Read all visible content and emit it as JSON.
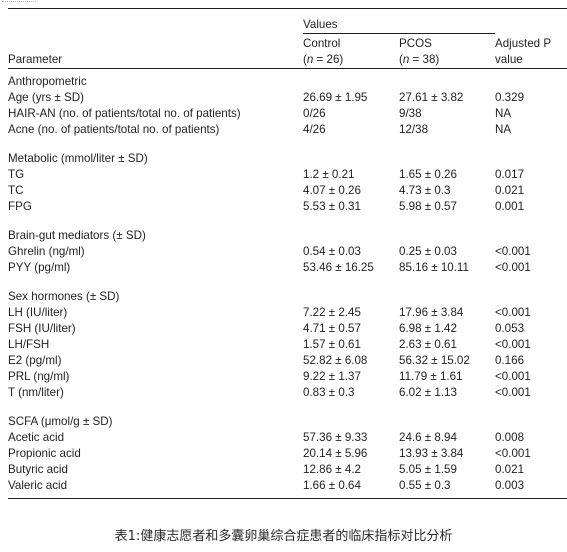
{
  "header": {
    "values_label": "Values",
    "parameter_label": "Parameter",
    "control_line1": "Control",
    "control_line2": "(n = 26)",
    "pcos_line1": "PCOS",
    "pcos_line2": "(n = 38)",
    "pvalue_line1": "Adjusted P",
    "pvalue_line2": "value"
  },
  "sections": [
    {
      "title": "Anthropometric",
      "rows": [
        {
          "label": "Age (yrs ± SD)",
          "control": "26.69 ± 1.95",
          "pcos": "27.61 ± 3.82",
          "p": "0.329"
        },
        {
          "label": "HAIR-AN (no. of patients/total no. of patients)",
          "control": "0/26",
          "pcos": "9/38",
          "p": "NA"
        },
        {
          "label": "Acne (no. of patients/total no. of patients)",
          "control": "4/26",
          "pcos": "12/38",
          "p": "NA"
        }
      ]
    },
    {
      "title": "Metabolic (mmol/liter ± SD)",
      "rows": [
        {
          "label": "TG",
          "control": "1.2 ± 0.21",
          "pcos": "1.65 ± 0.26",
          "p": "0.017"
        },
        {
          "label": "TC",
          "control": "4.07 ± 0.26",
          "pcos": "4.73 ± 0.3",
          "p": "0.021"
        },
        {
          "label": "FPG",
          "control": "5.53 ± 0.31",
          "pcos": "5.98 ± 0.57",
          "p": "0.001"
        }
      ]
    },
    {
      "title": "Brain-gut mediators (± SD)",
      "rows": [
        {
          "label": "Ghrelin (ng/ml)",
          "control": "0.54 ± 0.03",
          "pcos": "0.25 ± 0.03",
          "p": "<0.001"
        },
        {
          "label": "PYY (pg/ml)",
          "control": "53.46 ± 16.25",
          "pcos": "85.16 ± 10.11",
          "p": "<0.001"
        }
      ]
    },
    {
      "title": "Sex hormones (± SD)",
      "rows": [
        {
          "label": "LH (IU/liter)",
          "control": "7.22 ± 2.45",
          "pcos": "17.96 ± 3.84",
          "p": "<0.001"
        },
        {
          "label": "FSH (IU/liter)",
          "control": "4.71 ± 0.57",
          "pcos": "6.98 ± 1.42",
          "p": "0.053"
        },
        {
          "label": "LH/FSH",
          "control": "1.57 ± 0.61",
          "pcos": "2.63 ± 0.61",
          "p": "<0.001"
        },
        {
          "label": "E2 (pg/ml)",
          "control": "52.82 ± 6.08",
          "pcos": "56.32 ± 15.02",
          "p": "0.166"
        },
        {
          "label": "PRL (ng/ml)",
          "control": "9.22 ± 1.37",
          "pcos": "11.79 ± 1.61",
          "p": "<0.001"
        },
        {
          "label": "T (nm/liter)",
          "control": "0.83 ± 0.3",
          "pcos": "6.02 ± 1.13",
          "p": "<0.001"
        }
      ]
    },
    {
      "title": "SCFA (μmol/g ± SD)",
      "rows": [
        {
          "label": "Acetic acid",
          "control": "57.36 ± 9.33",
          "pcos": "24.6 ± 8.94",
          "p": "0.008"
        },
        {
          "label": "Propionic acid",
          "control": "20.14 ± 5.96",
          "pcos": "13.93 ± 3.84",
          "p": "<0.001"
        },
        {
          "label": "Butyric acid",
          "control": "12.86 ± 4.2",
          "pcos": "5.05 ± 1.59",
          "p": "0.021"
        },
        {
          "label": "Valeric acid",
          "control": "1.66 ± 0.64",
          "pcos": "0.55 ± 0.3",
          "p": "0.003"
        }
      ]
    }
  ],
  "caption": "表1:健康志愿者和多囊卵巢综合症患者的临床指标对比分析"
}
